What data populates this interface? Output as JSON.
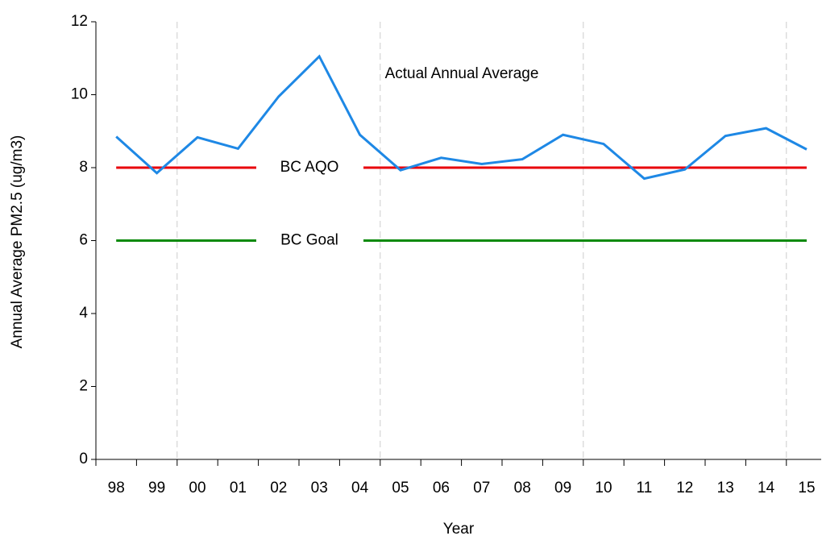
{
  "chart_data": {
    "type": "line",
    "x_label": "Year",
    "y_label": "Annual Average PM2.5 (ug/m3)",
    "categories": [
      "98",
      "99",
      "00",
      "01",
      "02",
      "03",
      "04",
      "05",
      "06",
      "07",
      "08",
      "09",
      "10",
      "11",
      "12",
      "13",
      "14",
      "15"
    ],
    "series": [
      {
        "name": "Actual Annual Average",
        "color": "#1e88e5",
        "values": [
          8.85,
          7.85,
          8.83,
          8.52,
          9.95,
          11.05,
          8.9,
          7.93,
          8.27,
          8.1,
          8.23,
          8.9,
          8.65,
          7.7,
          7.95,
          8.87,
          9.08,
          8.5
        ]
      }
    ],
    "reference_lines": [
      {
        "name": "BC AQO",
        "value": 8,
        "color": "#e8000b"
      },
      {
        "name": "BC Goal",
        "value": 6,
        "color": "#0a8a0a"
      }
    ],
    "ylim": [
      0,
      12
    ],
    "yticks": [
      0,
      2,
      4,
      6,
      8,
      10,
      12
    ]
  }
}
